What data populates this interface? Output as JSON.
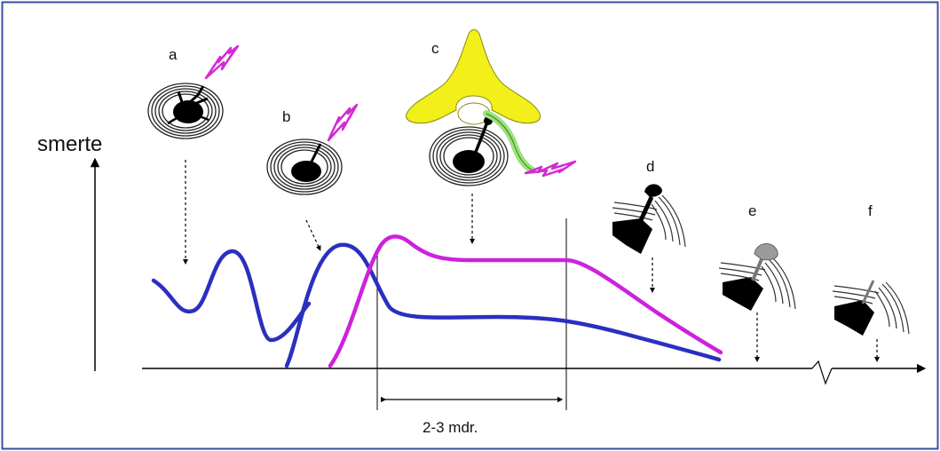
{
  "diagram": {
    "y_axis_label": "smerte",
    "duration_label": "2-3 mdr.",
    "stage_labels": {
      "a": "a",
      "b": "b",
      "c": "c",
      "d": "d",
      "e": "e",
      "f": "f"
    },
    "colors": {
      "frame": "#3a4fa0",
      "blue_curve": "#2b2fbf",
      "magenta_curve": "#cc22dd",
      "lightning": "#d42ad4",
      "vertebra": "#f2ef1a",
      "nerve_root": "#9be27a",
      "disc_black": "#000000",
      "axis": "#000000"
    },
    "icons": [
      "lightning-icon",
      "disc-icon",
      "vertebra-icon",
      "nerve-root-icon",
      "dashed-arrow-icon",
      "axis-break-icon"
    ]
  }
}
